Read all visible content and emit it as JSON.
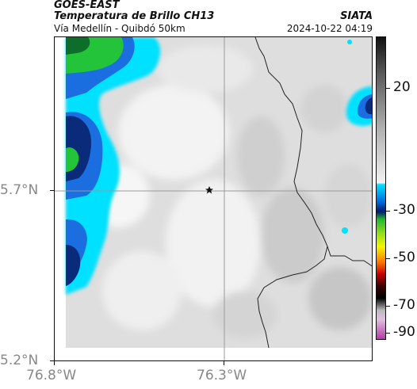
{
  "header": {
    "title_line1": "GOES-EAST",
    "title_line2": "Temperatura de Brillo CH13",
    "subtitle": "Vía Medellín - Quibdó 50km",
    "org": "SIATA",
    "datetime": "2024-10-22 04:19"
  },
  "axes": {
    "y_ticks": [
      "5.7°N",
      "5.2°N"
    ],
    "x_ticks": [
      "76.8°W",
      "76.3°W"
    ]
  },
  "colorbar": {
    "ticks": [
      "20",
      "-30",
      "-50",
      "-70",
      "-90"
    ],
    "colors": {
      "warm_top": "#1a1a1a",
      "warm_mid": "#9a9a9a",
      "warm_low": "#e8e8e8",
      "cyan": "#00e5ff",
      "blue": "#0050c8",
      "navy": "#001a6e",
      "green": "#22b830",
      "yellow": "#f5f500",
      "orange": "#ff7a00",
      "red": "#c80000",
      "black": "#000000",
      "magenta": "#c040b0"
    }
  },
  "map": {
    "marker": "star-icon",
    "colors": {
      "background": "#e6e6e6",
      "cloud_light": "#f4f4f4",
      "cloud_grey": "#bdbdbd",
      "cyan": "#00e0ff",
      "blue": "#1a6ee0",
      "navy": "#0a2a7a",
      "green": "#23c43a",
      "border": "#222222"
    }
  }
}
